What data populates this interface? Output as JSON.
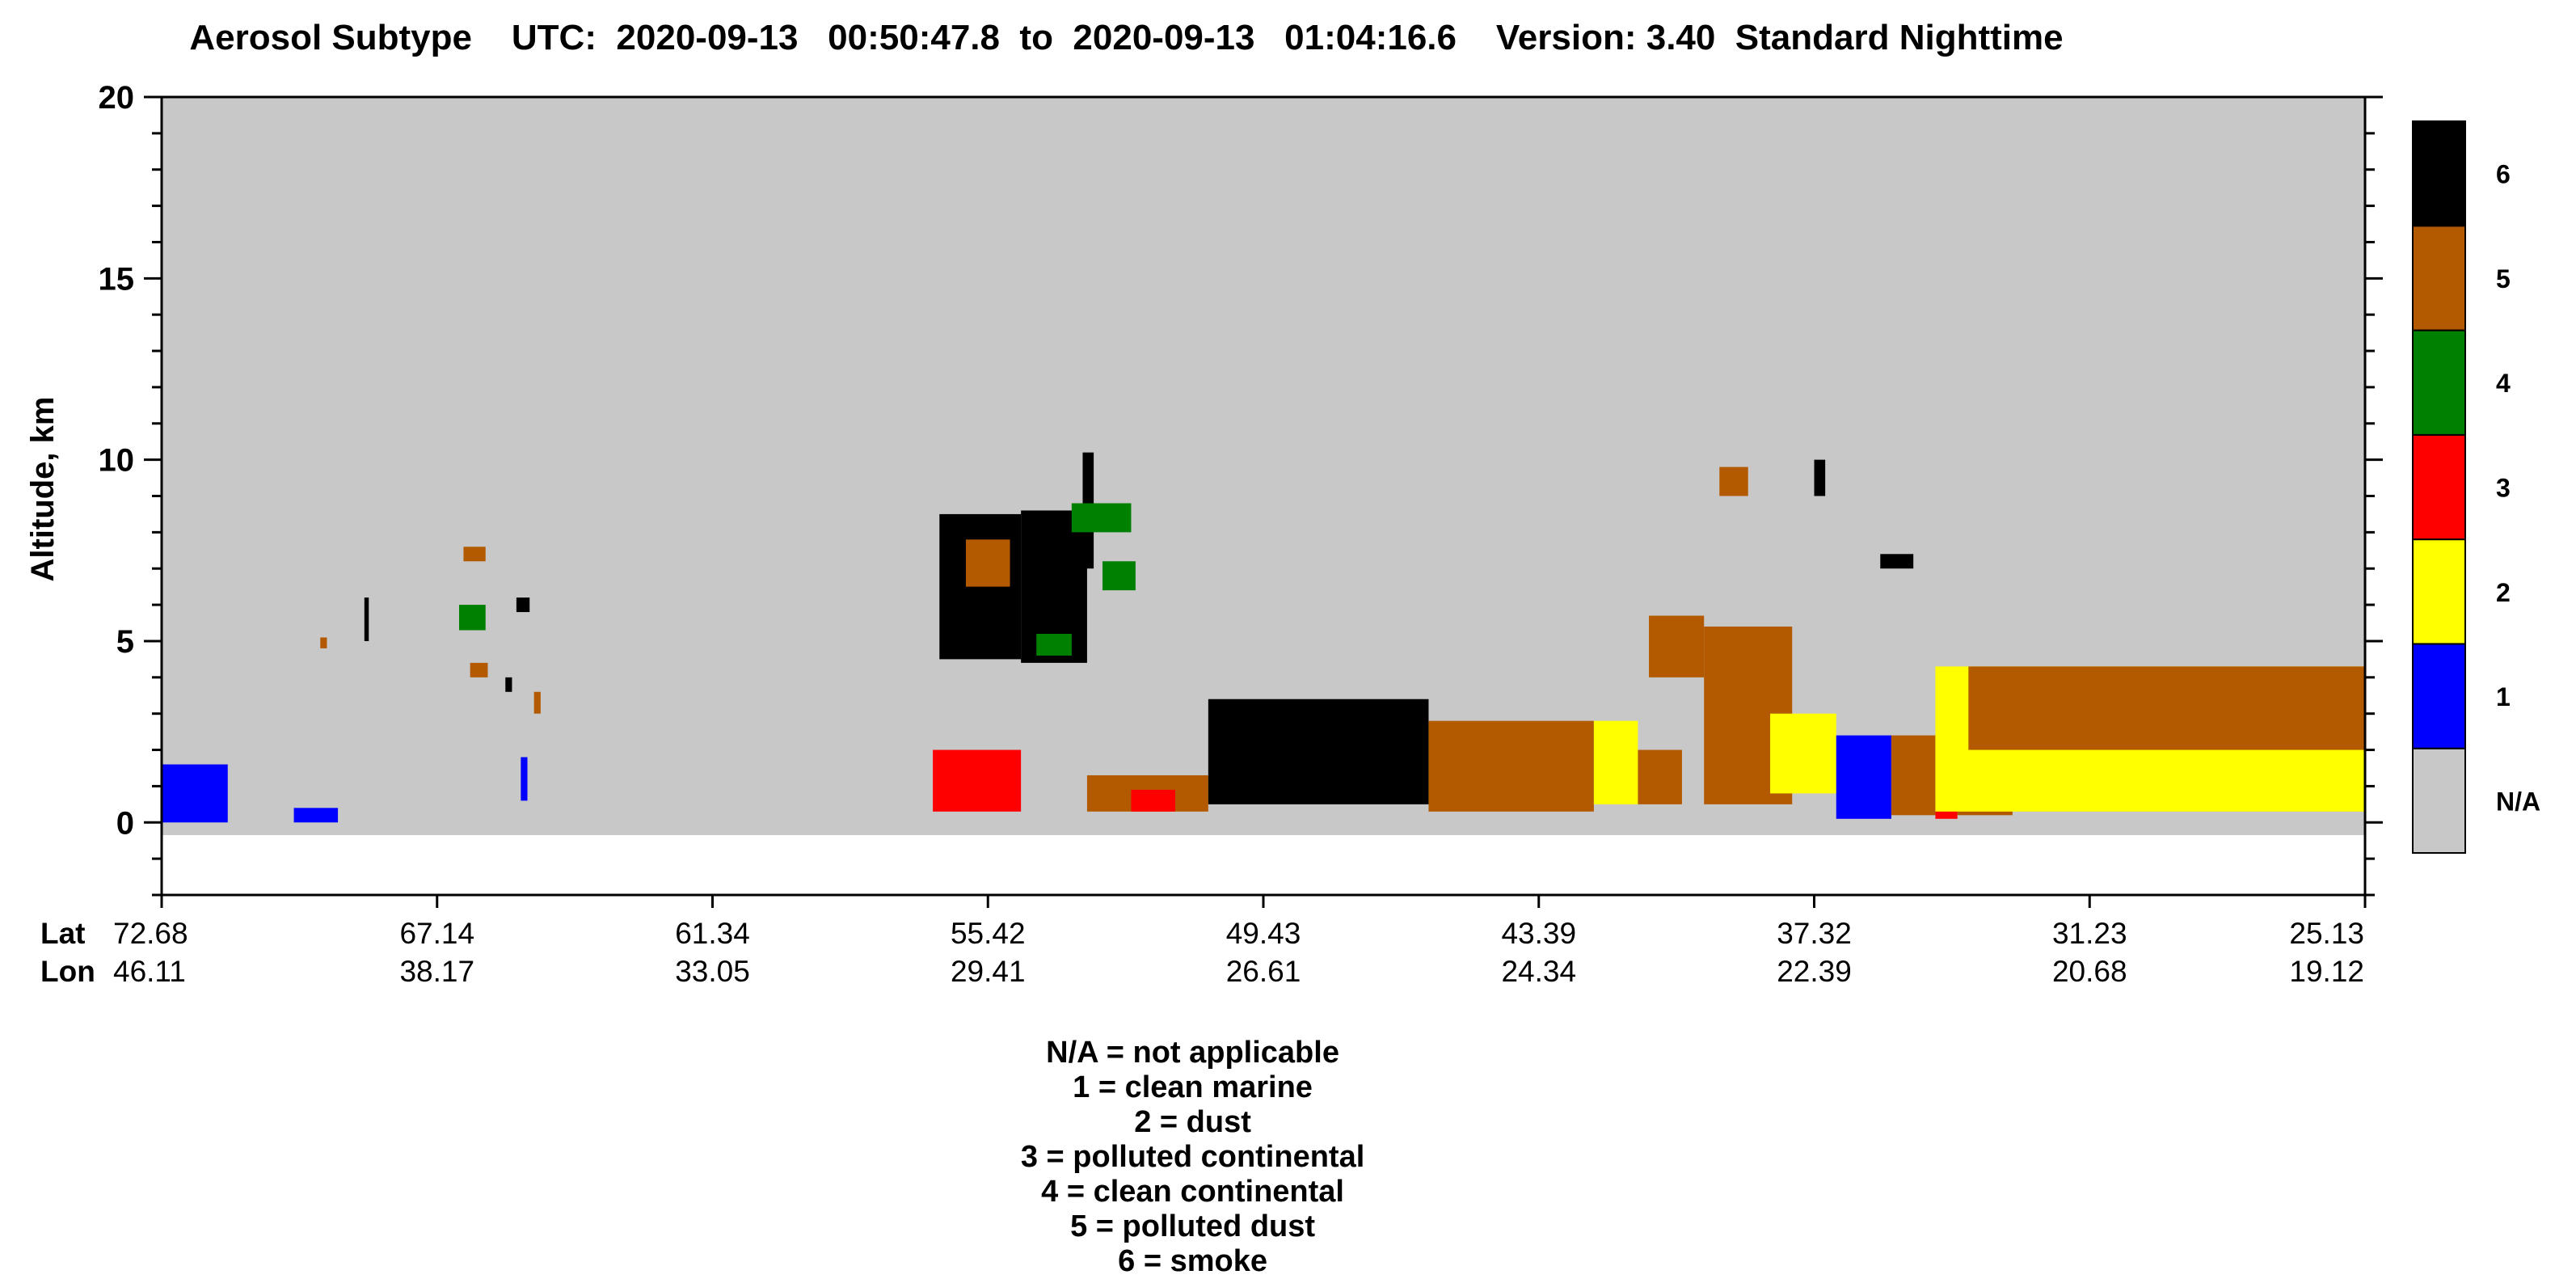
{
  "title": "Aerosol Subtype    UTC:  2020-09-13   00:50:47.8  to  2020-09-13   01:04:16.6    Version: 3.40  Standard Nighttime",
  "legend_text": [
    "N/A = not applicable",
    "1 = clean marine",
    "2 = dust",
    "3 = polluted continental",
    "4 = clean continental",
    "5 = polluted dust",
    "6 = smoke"
  ],
  "colors": {
    "na": "#c8c8c8",
    "1": "#0000ff",
    "2": "#ffff00",
    "3": "#ff0000",
    "4": "#008000",
    "5": "#b35900",
    "6": "#000000"
  },
  "chart_data": {
    "type": "heatmap",
    "title": "Aerosol Subtype",
    "ylabel": "Altitude, km",
    "ylim": [
      -2,
      20
    ],
    "yticks": [
      0,
      5,
      10,
      15,
      20
    ],
    "x_row_labels": [
      "Lat",
      "Lon"
    ],
    "lat_ticks": [
      "72.68",
      "67.14",
      "61.34",
      "55.42",
      "49.43",
      "43.39",
      "37.32",
      "31.23",
      "25.13"
    ],
    "lon_ticks": [
      "46.11",
      "38.17",
      "33.05",
      "29.41",
      "26.61",
      "24.34",
      "22.39",
      "20.68",
      "19.12"
    ],
    "colorbar": {
      "labels": [
        "N/A",
        "1",
        "2",
        "3",
        "4",
        "5",
        "6"
      ],
      "meanings": [
        "not applicable",
        "clean marine",
        "dust",
        "polluted continental",
        "clean continental",
        "polluted dust",
        "smoke"
      ]
    },
    "features": [
      {
        "type": 1,
        "x": [
          0.0,
          0.03
        ],
        "alt": [
          0.0,
          1.6
        ]
      },
      {
        "type": 1,
        "x": [
          0.06,
          0.08
        ],
        "alt": [
          0.0,
          0.4
        ]
      },
      {
        "type": 5,
        "x": [
          0.072,
          0.075
        ],
        "alt": [
          4.8,
          5.1
        ]
      },
      {
        "type": 6,
        "x": [
          0.092,
          0.094
        ],
        "alt": [
          5.0,
          6.2
        ]
      },
      {
        "type": 5,
        "x": [
          0.137,
          0.147
        ],
        "alt": [
          7.2,
          7.6
        ]
      },
      {
        "type": 4,
        "x": [
          0.135,
          0.147
        ],
        "alt": [
          5.3,
          6.0
        ]
      },
      {
        "type": 6,
        "x": [
          0.161,
          0.167
        ],
        "alt": [
          5.8,
          6.2
        ]
      },
      {
        "type": 5,
        "x": [
          0.14,
          0.148
        ],
        "alt": [
          4.0,
          4.4
        ]
      },
      {
        "type": 6,
        "x": [
          0.156,
          0.159
        ],
        "alt": [
          3.6,
          4.0
        ]
      },
      {
        "type": 5,
        "x": [
          0.169,
          0.172
        ],
        "alt": [
          3.0,
          3.6
        ]
      },
      {
        "type": 1,
        "x": [
          0.163,
          0.166
        ],
        "alt": [
          0.6,
          1.8
        ]
      },
      {
        "type": 3,
        "x": [
          0.35,
          0.39
        ],
        "alt": [
          0.3,
          2.0
        ]
      },
      {
        "type": 6,
        "x": [
          0.353,
          0.39
        ],
        "alt": [
          4.5,
          8.5
        ]
      },
      {
        "type": 5,
        "x": [
          0.365,
          0.385
        ],
        "alt": [
          6.5,
          7.8
        ]
      },
      {
        "type": 6,
        "x": [
          0.39,
          0.42
        ],
        "alt": [
          4.4,
          8.6
        ]
      },
      {
        "type": 6,
        "x": [
          0.418,
          0.423
        ],
        "alt": [
          7.0,
          10.2
        ]
      },
      {
        "type": 4,
        "x": [
          0.413,
          0.44
        ],
        "alt": [
          8.0,
          8.8
        ]
      },
      {
        "type": 4,
        "x": [
          0.427,
          0.442
        ],
        "alt": [
          6.4,
          7.2
        ]
      },
      {
        "type": 4,
        "x": [
          0.397,
          0.413
        ],
        "alt": [
          4.6,
          5.2
        ]
      },
      {
        "type": 5,
        "x": [
          0.42,
          0.475
        ],
        "alt": [
          0.3,
          1.3
        ]
      },
      {
        "type": 3,
        "x": [
          0.44,
          0.46
        ],
        "alt": [
          0.3,
          0.9
        ]
      },
      {
        "type": 6,
        "x": [
          0.475,
          0.575
        ],
        "alt": [
          0.5,
          3.4
        ]
      },
      {
        "type": 5,
        "x": [
          0.575,
          0.65
        ],
        "alt": [
          0.3,
          2.8
        ]
      },
      {
        "type": 2,
        "x": [
          0.65,
          0.67
        ],
        "alt": [
          0.5,
          2.8
        ]
      },
      {
        "type": 5,
        "x": [
          0.67,
          0.69
        ],
        "alt": [
          0.5,
          2.0
        ]
      },
      {
        "type": 5,
        "x": [
          0.675,
          0.7
        ],
        "alt": [
          4.0,
          5.7
        ]
      },
      {
        "type": 5,
        "x": [
          0.7,
          0.74
        ],
        "alt": [
          0.5,
          5.4
        ]
      },
      {
        "type": 5,
        "x": [
          0.707,
          0.72
        ],
        "alt": [
          9.0,
          9.8
        ]
      },
      {
        "type": 6,
        "x": [
          0.75,
          0.755
        ],
        "alt": [
          9.0,
          10.0
        ]
      },
      {
        "type": 6,
        "x": [
          0.78,
          0.795
        ],
        "alt": [
          7.0,
          7.4
        ]
      },
      {
        "type": 2,
        "x": [
          0.73,
          0.76
        ],
        "alt": [
          0.8,
          3.0
        ]
      },
      {
        "type": 1,
        "x": [
          0.76,
          0.785
        ],
        "alt": [
          0.1,
          2.4
        ]
      },
      {
        "type": 5,
        "x": [
          0.785,
          0.805
        ],
        "alt": [
          0.2,
          2.4
        ]
      },
      {
        "type": 3,
        "x": [
          0.805,
          0.815
        ],
        "alt": [
          0.1,
          0.6
        ]
      },
      {
        "type": 5,
        "x": [
          0.815,
          0.84
        ],
        "alt": [
          0.2,
          1.3
        ]
      },
      {
        "type": 2,
        "x": [
          0.805,
          1.0
        ],
        "alt": [
          0.3,
          4.3
        ]
      },
      {
        "type": 5,
        "x": [
          0.82,
          1.0
        ],
        "alt": [
          2.0,
          4.3
        ]
      }
    ]
  }
}
